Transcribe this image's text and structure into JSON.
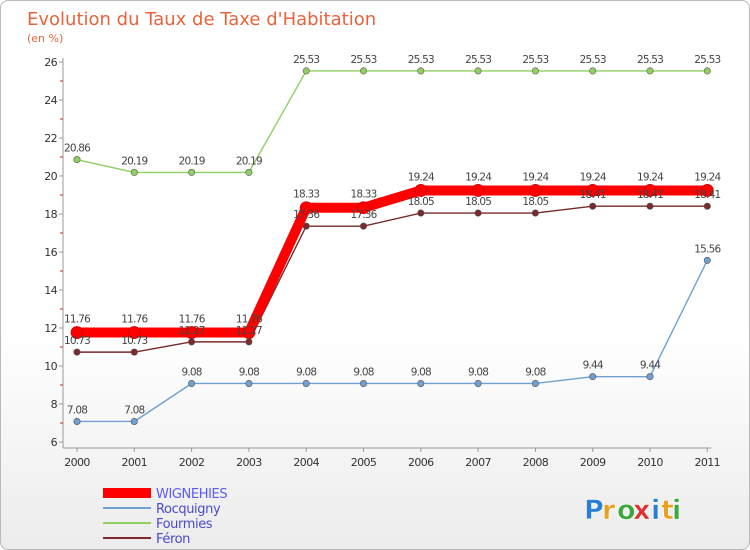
{
  "chart_data": {
    "type": "line",
    "title": "Evolution du Taux de Taxe d'Habitation",
    "subtitle": "(en %)",
    "xlabel": "",
    "ylabel": "",
    "ylim": [
      6,
      26
    ],
    "yticks": [
      "6",
      "8",
      "10",
      "12",
      "14",
      "16",
      "18",
      "20",
      "22",
      "24",
      "26"
    ],
    "grid": false,
    "legend_position": "bottom-left",
    "categories": [
      "2000",
      "2001",
      "2002",
      "2003",
      "2004",
      "2005",
      "2006",
      "2007",
      "2008",
      "2009",
      "2010",
      "2011"
    ],
    "series": [
      {
        "name": "WIGNEHIES",
        "color": "#ff0000",
        "values": [
          11.76,
          11.76,
          11.76,
          11.76,
          18.33,
          18.33,
          19.24,
          19.24,
          19.24,
          19.24,
          19.24,
          19.24
        ],
        "labels": [
          "11.76",
          "11.76",
          "11.76",
          "11.76",
          "18.33",
          "18.33",
          "19.24",
          "19.24",
          "19.24",
          "19.24",
          "19.24",
          "19.24"
        ]
      },
      {
        "name": "Rocquigny",
        "color": "#6fa0d0",
        "values": [
          7.08,
          7.08,
          9.08,
          9.08,
          9.08,
          9.08,
          9.08,
          9.08,
          9.08,
          9.44,
          9.44,
          15.56
        ],
        "labels": [
          "7.08",
          "7.08",
          "9.08",
          "9.08",
          "9.08",
          "9.08",
          "9.08",
          "9.08",
          "9.08",
          "9.44",
          "9.44",
          "15.56"
        ]
      },
      {
        "name": "Fourmies",
        "color": "#90d060",
        "values": [
          20.86,
          20.19,
          20.19,
          20.19,
          25.53,
          25.53,
          25.53,
          25.53,
          25.53,
          25.53,
          25.53,
          25.53
        ],
        "labels": [
          "20.86",
          "20.19",
          "20.19",
          "20.19",
          "25.53",
          "25.53",
          "25.53",
          "25.53",
          "25.53",
          "25.53",
          "25.53",
          "25.53"
        ]
      },
      {
        "name": "Féron",
        "color": "#7a2a2a",
        "values": [
          10.73,
          10.73,
          11.27,
          11.27,
          17.36,
          17.36,
          18.05,
          18.05,
          18.05,
          18.41,
          18.41,
          18.41
        ],
        "labels": [
          "10.73",
          "10.73",
          "11.27",
          "11.27",
          "17.36",
          "17.36",
          "18.05",
          "18.05",
          "18.05",
          "18.41",
          "18.41",
          "18.41"
        ]
      }
    ]
  },
  "logo": {
    "text": "Proxiti",
    "letters": [
      "P",
      "r",
      "o",
      "x",
      "i",
      "t",
      "i"
    ],
    "colors": [
      "#2a7fd4",
      "#e8a020",
      "#3aa83a",
      "#e03030",
      "#2a7fd4",
      "#e8a020",
      "#3aa83a"
    ]
  },
  "colors": {
    "title": "#e8633b",
    "axis": "#999999",
    "tick_mark": "#cc2222"
  }
}
